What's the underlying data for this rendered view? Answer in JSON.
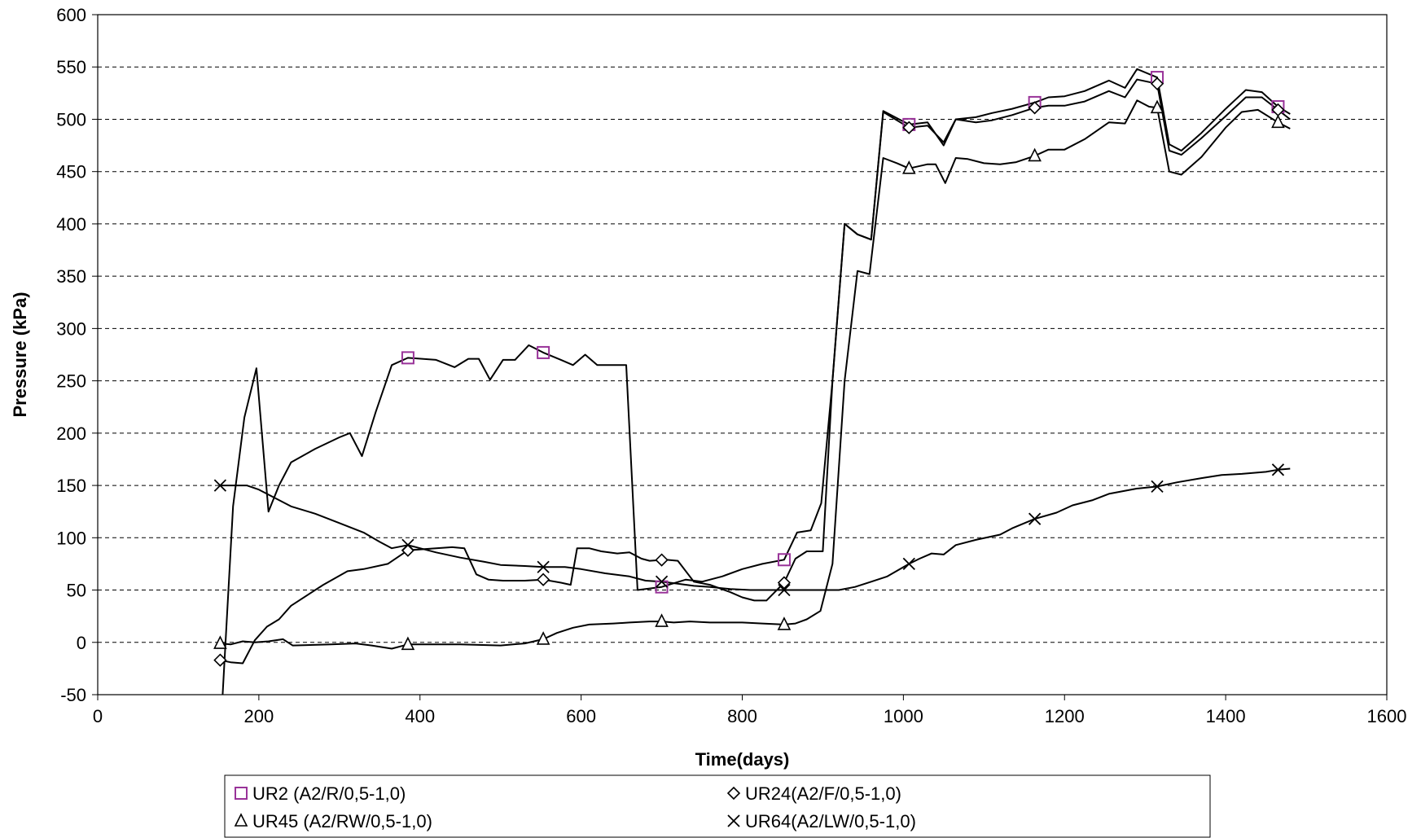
{
  "chart_data": {
    "type": "line",
    "title": "",
    "xlabel": "Time(days)",
    "ylabel": "Pressure (kPa)",
    "xlim": [
      0,
      1600
    ],
    "ylim": [
      -50,
      600
    ],
    "x_ticks": [
      0,
      200,
      400,
      600,
      800,
      1000,
      1200,
      1400,
      1600
    ],
    "y_ticks": [
      -50,
      0,
      50,
      100,
      150,
      200,
      250,
      300,
      350,
      400,
      450,
      500,
      550,
      600
    ],
    "grid": "horizontal dashed",
    "legend_position": "bottom",
    "series": [
      {
        "name": "UR2 (A2/R/0,5-1,0)",
        "marker": "square",
        "marker_color": "#993399",
        "points": [
          [
            155,
            -50
          ],
          [
            168,
            130
          ],
          [
            182,
            215
          ],
          [
            197,
            262
          ],
          [
            212,
            125
          ],
          [
            225,
            150
          ],
          [
            240,
            172
          ],
          [
            270,
            185
          ],
          [
            300,
            196
          ],
          [
            313,
            200
          ],
          [
            328,
            178
          ],
          [
            345,
            220
          ],
          [
            365,
            265
          ],
          [
            385,
            272
          ],
          [
            420,
            270
          ],
          [
            443,
            263
          ],
          [
            460,
            271
          ],
          [
            473,
            271
          ],
          [
            487,
            251
          ],
          [
            503,
            270
          ],
          [
            518,
            270
          ],
          [
            535,
            284
          ],
          [
            553,
            277
          ],
          [
            575,
            270
          ],
          [
            590,
            265
          ],
          [
            605,
            275
          ],
          [
            620,
            265
          ],
          [
            640,
            265
          ],
          [
            656,
            265
          ],
          [
            670,
            50
          ],
          [
            700,
            53
          ],
          [
            730,
            60
          ],
          [
            750,
            58
          ],
          [
            775,
            63
          ],
          [
            800,
            70
          ],
          [
            825,
            75
          ],
          [
            852,
            79
          ],
          [
            868,
            105
          ],
          [
            885,
            107
          ],
          [
            898,
            133
          ],
          [
            912,
            250
          ],
          [
            927,
            400
          ],
          [
            943,
            390
          ],
          [
            960,
            385
          ],
          [
            975,
            508
          ],
          [
            1007,
            495
          ],
          [
            1030,
            497
          ],
          [
            1050,
            475
          ],
          [
            1065,
            500
          ],
          [
            1090,
            502
          ],
          [
            1110,
            506
          ],
          [
            1135,
            510
          ],
          [
            1163,
            516
          ],
          [
            1180,
            521
          ],
          [
            1200,
            522
          ],
          [
            1225,
            527
          ],
          [
            1255,
            537
          ],
          [
            1275,
            530
          ],
          [
            1290,
            548
          ],
          [
            1315,
            540
          ],
          [
            1330,
            476
          ],
          [
            1345,
            470
          ],
          [
            1370,
            487
          ],
          [
            1400,
            510
          ],
          [
            1425,
            528
          ],
          [
            1445,
            526
          ],
          [
            1465,
            512
          ],
          [
            1480,
            505
          ]
        ]
      },
      {
        "name": "UR24(A2/F/0,5-1,0)",
        "marker": "diamond",
        "marker_color": "#000000",
        "points": [
          [
            152,
            -17
          ],
          [
            165,
            -19
          ],
          [
            180,
            -20
          ],
          [
            195,
            2
          ],
          [
            210,
            15
          ],
          [
            225,
            22
          ],
          [
            240,
            35
          ],
          [
            280,
            55
          ],
          [
            310,
            68
          ],
          [
            330,
            70
          ],
          [
            360,
            75
          ],
          [
            385,
            88
          ],
          [
            420,
            90
          ],
          [
            440,
            91
          ],
          [
            455,
            90
          ],
          [
            470,
            65
          ],
          [
            485,
            60
          ],
          [
            503,
            59
          ],
          [
            530,
            59
          ],
          [
            553,
            60
          ],
          [
            575,
            57
          ],
          [
            587,
            55
          ],
          [
            595,
            90
          ],
          [
            610,
            90
          ],
          [
            625,
            87
          ],
          [
            645,
            85
          ],
          [
            660,
            86
          ],
          [
            675,
            80
          ],
          [
            685,
            78
          ],
          [
            705,
            79
          ],
          [
            720,
            78
          ],
          [
            740,
            58
          ],
          [
            760,
            55
          ],
          [
            785,
            48
          ],
          [
            800,
            43
          ],
          [
            815,
            40
          ],
          [
            830,
            40
          ],
          [
            852,
            57
          ],
          [
            866,
            80
          ],
          [
            880,
            87
          ],
          [
            900,
            87
          ],
          [
            912,
            250
          ],
          [
            927,
            400
          ],
          [
            943,
            390
          ],
          [
            960,
            385
          ],
          [
            975,
            507
          ],
          [
            1007,
            492
          ],
          [
            1030,
            494
          ],
          [
            1050,
            478
          ],
          [
            1065,
            500
          ],
          [
            1090,
            497
          ],
          [
            1110,
            499
          ],
          [
            1135,
            504
          ],
          [
            1163,
            511
          ],
          [
            1180,
            513
          ],
          [
            1200,
            513
          ],
          [
            1225,
            517
          ],
          [
            1255,
            527
          ],
          [
            1275,
            521
          ],
          [
            1290,
            538
          ],
          [
            1315,
            534
          ],
          [
            1330,
            470
          ],
          [
            1345,
            466
          ],
          [
            1370,
            482
          ],
          [
            1400,
            503
          ],
          [
            1425,
            521
          ],
          [
            1445,
            521
          ],
          [
            1465,
            509
          ],
          [
            1480,
            500
          ]
        ]
      },
      {
        "name": "UR45 (A2/RW/0,5-1,0)",
        "marker": "triangle",
        "marker_color": "#000000",
        "points": [
          [
            152,
            -1
          ],
          [
            165,
            -2
          ],
          [
            180,
            1
          ],
          [
            195,
            0
          ],
          [
            212,
            1
          ],
          [
            230,
            3
          ],
          [
            242,
            -3
          ],
          [
            290,
            -2
          ],
          [
            320,
            -1
          ],
          [
            340,
            -3
          ],
          [
            365,
            -6
          ],
          [
            385,
            -2
          ],
          [
            420,
            -2
          ],
          [
            450,
            -2
          ],
          [
            500,
            -3
          ],
          [
            530,
            -1
          ],
          [
            553,
            3
          ],
          [
            570,
            9
          ],
          [
            590,
            14
          ],
          [
            610,
            17
          ],
          [
            640,
            18
          ],
          [
            660,
            19
          ],
          [
            685,
            20
          ],
          [
            700,
            20
          ],
          [
            715,
            19
          ],
          [
            735,
            20
          ],
          [
            760,
            19
          ],
          [
            800,
            19
          ],
          [
            825,
            18
          ],
          [
            852,
            17
          ],
          [
            866,
            18
          ],
          [
            880,
            22
          ],
          [
            897,
            30
          ],
          [
            912,
            75
          ],
          [
            927,
            250
          ],
          [
            943,
            355
          ],
          [
            958,
            352
          ],
          [
            975,
            463
          ],
          [
            992,
            458
          ],
          [
            1007,
            453
          ],
          [
            1030,
            457
          ],
          [
            1040,
            457
          ],
          [
            1052,
            439
          ],
          [
            1065,
            463
          ],
          [
            1080,
            462
          ],
          [
            1100,
            458
          ],
          [
            1120,
            457
          ],
          [
            1140,
            459
          ],
          [
            1163,
            465
          ],
          [
            1180,
            471
          ],
          [
            1200,
            471
          ],
          [
            1225,
            481
          ],
          [
            1255,
            497
          ],
          [
            1275,
            496
          ],
          [
            1290,
            518
          ],
          [
            1305,
            512
          ],
          [
            1315,
            511
          ],
          [
            1330,
            450
          ],
          [
            1345,
            447
          ],
          [
            1370,
            464
          ],
          [
            1400,
            492
          ],
          [
            1420,
            507
          ],
          [
            1440,
            509
          ],
          [
            1465,
            497
          ],
          [
            1480,
            491
          ]
        ]
      },
      {
        "name": "UR64(A2/LW/0,5-1,0)",
        "marker": "x",
        "marker_color": "#000000",
        "points": [
          [
            152,
            150
          ],
          [
            185,
            150
          ],
          [
            200,
            146
          ],
          [
            240,
            130
          ],
          [
            270,
            123
          ],
          [
            300,
            114
          ],
          [
            330,
            105
          ],
          [
            350,
            96
          ],
          [
            365,
            90
          ],
          [
            385,
            93
          ],
          [
            420,
            86
          ],
          [
            450,
            81
          ],
          [
            480,
            77
          ],
          [
            500,
            74
          ],
          [
            530,
            73
          ],
          [
            553,
            72
          ],
          [
            580,
            72
          ],
          [
            600,
            70
          ],
          [
            630,
            66
          ],
          [
            660,
            63
          ],
          [
            680,
            59
          ],
          [
            700,
            58
          ],
          [
            720,
            56
          ],
          [
            740,
            54
          ],
          [
            760,
            53
          ],
          [
            785,
            51
          ],
          [
            810,
            50
          ],
          [
            830,
            50
          ],
          [
            852,
            50
          ],
          [
            880,
            50
          ],
          [
            900,
            50
          ],
          [
            920,
            50
          ],
          [
            940,
            53
          ],
          [
            960,
            58
          ],
          [
            980,
            63
          ],
          [
            1007,
            75
          ],
          [
            1020,
            80
          ],
          [
            1035,
            85
          ],
          [
            1050,
            84
          ],
          [
            1065,
            93
          ],
          [
            1090,
            98
          ],
          [
            1120,
            103
          ],
          [
            1135,
            109
          ],
          [
            1163,
            118
          ],
          [
            1190,
            124
          ],
          [
            1210,
            131
          ],
          [
            1235,
            136
          ],
          [
            1255,
            142
          ],
          [
            1290,
            147
          ],
          [
            1315,
            149
          ],
          [
            1340,
            153
          ],
          [
            1370,
            157
          ],
          [
            1395,
            160
          ],
          [
            1420,
            161
          ],
          [
            1450,
            163
          ],
          [
            1465,
            165
          ],
          [
            1480,
            166
          ]
        ]
      }
    ],
    "marker_x": {
      "UR2 (A2/R/0,5-1,0)": [
        385,
        553,
        700,
        852,
        1007,
        1163,
        1315,
        1465
      ],
      "UR24(A2/F/0,5-1,0)": [
        152,
        385,
        553,
        700,
        852,
        1007,
        1163,
        1315,
        1465
      ],
      "UR45 (A2/RW/0,5-1,0)": [
        152,
        385,
        553,
        700,
        852,
        1007,
        1163,
        1315,
        1465
      ],
      "UR64(A2/LW/0,5-1,0)": [
        152,
        385,
        553,
        700,
        852,
        1007,
        1163,
        1315,
        1465
      ]
    }
  }
}
